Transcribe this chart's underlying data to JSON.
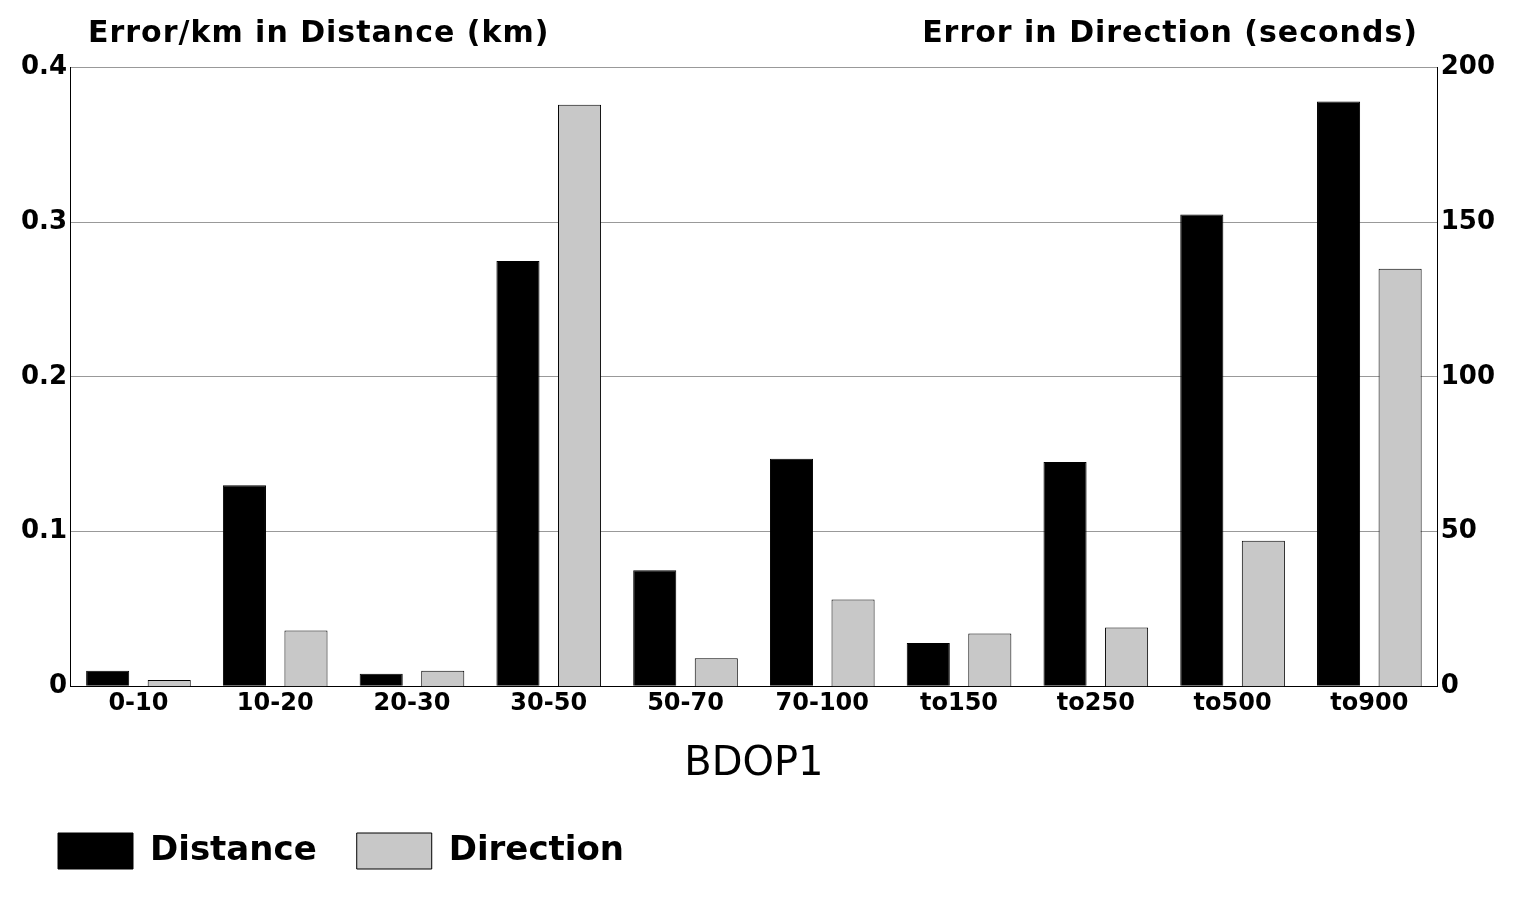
{
  "chart_data": {
    "type": "bar",
    "xlabel": "BDOP1",
    "ylabel": "Error/km in Distance (km)",
    "y2label": "Error in Direction (seconds)",
    "categories": [
      "0-10",
      "10-20",
      "20-30",
      "30-50",
      "50-70",
      "70-100",
      "to150",
      "to250",
      "to500",
      "to900"
    ],
    "series": [
      {
        "name": "Distance",
        "color": "#000000",
        "values": [
          0.01,
          0.13,
          0.008,
          0.275,
          0.075,
          0.147,
          0.028,
          0.145,
          0.305,
          0.378
        ]
      },
      {
        "name": "Direction",
        "color": "#c8c8c8",
        "axis": "y2",
        "values": [
          2,
          18,
          5,
          188,
          9,
          28,
          17,
          19,
          47,
          135
        ]
      }
    ],
    "ylim": [
      0,
      0.4
    ],
    "yticks": [
      0,
      0.1,
      0.2,
      0.3,
      0.4
    ],
    "y2lim": [
      0,
      200
    ],
    "y2ticks": [
      0,
      50,
      100,
      150,
      200
    ],
    "grid": "y",
    "legend": "bottom"
  }
}
